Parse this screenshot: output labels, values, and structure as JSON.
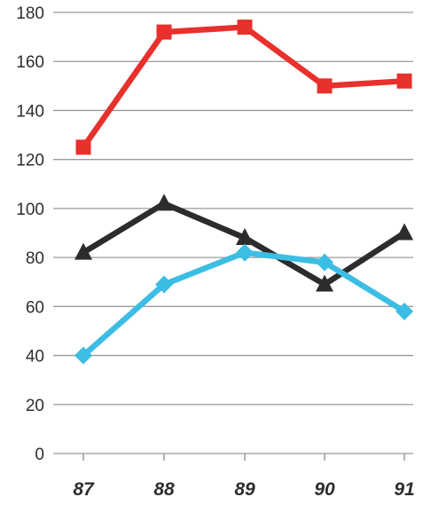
{
  "chart_data": {
    "type": "line",
    "title": "",
    "xlabel": "",
    "ylabel": "",
    "categories": [
      "87",
      "88",
      "89",
      "90",
      "91"
    ],
    "ylim": [
      0,
      180
    ],
    "yticks": [
      0,
      20,
      40,
      60,
      80,
      100,
      120,
      140,
      160,
      180
    ],
    "grid": true,
    "legend": "none",
    "series": [
      {
        "color": "#e8302c",
        "marker": "square",
        "values": [
          125,
          172,
          174,
          150,
          152
        ]
      },
      {
        "color": "#2c2c2c",
        "marker": "triangle",
        "values": [
          82,
          102,
          88,
          69,
          90
        ]
      },
      {
        "color": "#3cbde4",
        "marker": "diamond",
        "values": [
          40,
          69,
          82,
          78,
          58
        ]
      }
    ]
  }
}
